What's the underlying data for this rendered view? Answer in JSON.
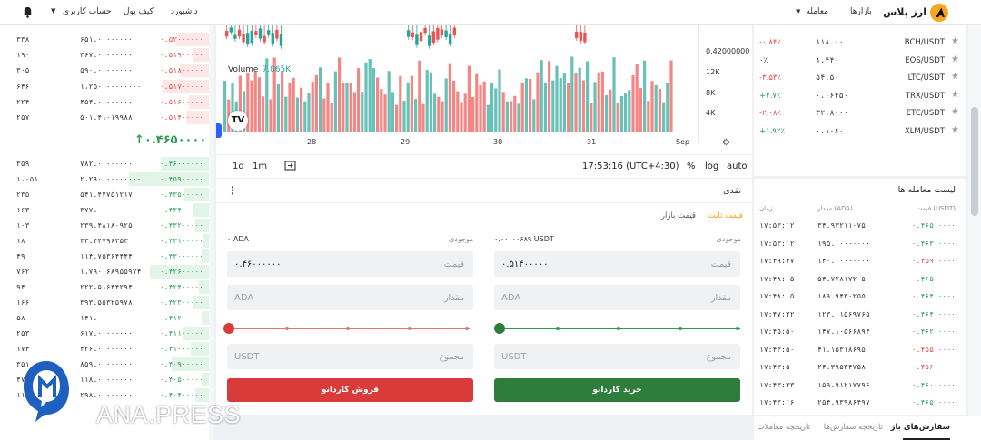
{
  "colors": {
    "buy": "#2e7d3a",
    "sell": "#d93b3b",
    "up": "#2e9b55",
    "down": "#e04848",
    "chart_up": "#26a69a",
    "chart_down": "#ef5350",
    "brand": "#f5a623"
  },
  "topbar": {
    "brand": "ارز پلاس",
    "nav_markets": "بازارها",
    "nav_trade": "معامله",
    "nav_dashboard": "داشبورد",
    "nav_wallet": "کیف پول",
    "nav_account": "حساب کاربری"
  },
  "orderbook": {
    "asks": [
      {
        "q": "۳۳۸",
        "a": "۶۵۱.۰۰۰۰۰۰۰۰",
        "p": "۰.۵۲۰۰۰۰۰۰",
        "fill": 0.18
      },
      {
        "q": "۱۹۰",
        "a": "۳۶۷.۰۰۰۰۰۰۰۰",
        "p": "۰.۵۱۹۰۰۰۰۰",
        "fill": 0.1
      },
      {
        "q": "۳۰۵",
        "a": "۵۹۰.۰۰۰۰۰۰۰۰",
        "p": "۰.۵۱۸۰۰۰۰۰",
        "fill": 0.16
      },
      {
        "q": "۶۴۶",
        "a": "۱،۲۵۰.۰۰۰۰۰۰۰۰",
        "p": "۰.۵۱۷۰۰۰۰۰",
        "fill": 0.24
      },
      {
        "q": "۲۲۴",
        "a": "۴۵۴.۰۰۰۰۰۰۰۰",
        "p": "۰.۵۱۶۰۰۰۰۰",
        "fill": 0.12
      },
      {
        "q": "۲۵۷",
        "a": "۵۰۱.۴۱۰۱۹۹۸۸",
        "p": "۰.۵۱۴۰۰۰۰۰",
        "fill": 0.13
      }
    ],
    "last_price": "↑۰.۴۶۵۰۰۰۰۰",
    "bids": [
      {
        "q": "۳۵۹",
        "a": "۷۸۲.۰۰۰۰۰۰۰۰",
        "p": "۰.۴۶۰۰۰۰۰۰",
        "fill": 0.25
      },
      {
        "q": "۱،۰۵۱",
        "a": "۲،۲۹۰.۰۰۰۰۰۰۰۰",
        "p": "۰.۴۵۹۰۰۰۰۰",
        "fill": 0.4
      },
      {
        "q": "۲۳۵",
        "a": "۵۴۱.۴۴۷۵۱۲۱۷",
        "p": "۰.۴۳۵۰۰۰۰۰",
        "fill": 0.14
      },
      {
        "q": "۱۶۳",
        "a": "۳۷۷.۰۰۰۰۰۰۰۰",
        "p": "۰.۴۳۴۰۰۰۰۰",
        "fill": 0.1
      },
      {
        "q": "۱۰۳",
        "a": "۲۳۹.۴۸۱۸۰۹۲۵",
        "p": "۰.۴۳۲۰۰۰۰۰",
        "fill": 0.09
      },
      {
        "q": "۱۸",
        "a": "۴۳.۴۴۷۹۶۳۵۳",
        "p": "۰.۴۳۱۰۰۰۰۰",
        "fill": 0.05
      },
      {
        "q": "۴۹",
        "a": "۱۱۴.۷۵۳۶۴۴۴۴",
        "p": "۰.۴۳۰۰۰۰۰۰",
        "fill": 0.06
      },
      {
        "q": "۷۶۲",
        "a": "۱،۷۹۰.۶۸۹۵۵۹۷۴",
        "p": "۰.۴۲۶۰۰۰۰۰",
        "fill": 0.3
      },
      {
        "q": "۹۴",
        "a": "۲۲۲.۵۱۶۴۴۲۹۴",
        "p": "۰.۴۲۴۰۰۰۰۰",
        "fill": 0.07
      },
      {
        "q": "۱۶۶",
        "a": "۳۹۳.۵۵۳۲۵۹۷۸",
        "p": "۰.۴۲۳۰۰۰۰۰",
        "fill": 0.1
      },
      {
        "q": "۵۸",
        "a": "۱۴۱.۰۰۰۰۰۰۰۰",
        "p": "۰.۴۱۲۰۰۰۰۰",
        "fill": 0.06
      },
      {
        "q": "۲۵۳",
        "a": "۶۱۷.۰۰۰۰۰۰۰۰",
        "p": "۰.۴۱۱۰۰۰۰۰",
        "fill": 0.15
      },
      {
        "q": "۱۷۴",
        "a": "۴۲۶.۰۰۰۰۰۰۰۰",
        "p": "۰.۴۱۰۰۰۰۰۰",
        "fill": 0.11
      },
      {
        "q": "۳۵۱",
        "a": "۸۵۹.۰۰۰۰۰۰۰۰",
        "p": "۰.۴۰۹۰۰۰۰۰",
        "fill": 0.2
      },
      {
        "q": "۴۷",
        "a": "۱۱۸.۰۰۰۰۰۰۰۰",
        "p": "۰.۴۰۵۰۰۰۰۰",
        "fill": 0.06
      },
      {
        "q": "۱۱۹",
        "a": "۲۹۸.۰۰۰۰۰۰۰۰",
        "p": "۰.۴۰۴۰۰۰۰۰",
        "fill": 0.09
      }
    ]
  },
  "chart": {
    "price_label": "0.42000000",
    "volume_label": "Volume",
    "volume_value": "7.065K",
    "vol_ticks": [
      "12K",
      "8K",
      "4K"
    ],
    "x_labels": [
      "28",
      "29",
      "30",
      "31",
      "Sep"
    ],
    "tool_1d": "1d",
    "tool_1m": "1m",
    "clock": "17:53:16 (UTC+4:30)",
    "pct": "%",
    "log": "log",
    "auto": "auto",
    "tv_logo": "TV"
  },
  "trade": {
    "title": "نقدی",
    "type_fixed": "قیمت ثابت",
    "type_market": "قیمت بازار",
    "balance_label": "موجودی",
    "buy_balance": "۰.۰۰۰۰۰۶۸۹ USDT",
    "sell_balance": "۰ ADA",
    "buy_price": "۰.۵۱۴۰۰۰۰۰",
    "sell_price": "۰.۴۶۰۰۰۰۰۰",
    "price_label": "قیمت",
    "amount_label": "مقدار",
    "total_label": "مجموع",
    "amount_ph": "ADA",
    "total_ph": "USDT",
    "buy_btn": "خرید کاردانو",
    "sell_btn": "فروش کاردانو"
  },
  "markets": [
    {
      "pair": "BCH/USDT",
      "price": "۱۱۸.۰۰",
      "change": "-۰.۸۴٪",
      "dir": "dn"
    },
    {
      "pair": "EOS/USDT",
      "price": "۱.۴۴۰",
      "change": "۰٪",
      "dir": "zero"
    },
    {
      "pair": "LTC/USDT",
      "price": "۵۴.۵۰",
      "change": "-۳.۵۳٪",
      "dir": "dn"
    },
    {
      "pair": "TRX/USDT",
      "price": "۰.۰۶۴۵۰",
      "change": "+۲.۷٪",
      "dir": "up"
    },
    {
      "pair": "ETC/USDT",
      "price": "۳۲.۸۰۰۰",
      "change": "-۲.۰۸٪",
      "dir": "dn"
    },
    {
      "pair": "XLM/USDT",
      "price": "۰.۱۰۶۰",
      "change": "+۱.۹۲٪",
      "dir": "up"
    }
  ],
  "trades": {
    "title": "لیست معامله ها",
    "col_price": "قیمت (USDT)",
    "col_amount": "مقدار (ADA)",
    "col_time": "زمان",
    "rows": [
      {
        "t": "۱۷:۵۳:۱۲",
        "a": "۳۴.۹۳۲۱۱۰۷۵",
        "p": "۰.۴۶۵۰۰۰۰۰",
        "d": "up"
      },
      {
        "t": "۱۷:۵۳:۱۲",
        "a": "۱۹۵.۰۰۰۰۰۰۰۰",
        "p": "۰.۴۶۳۰۰۰۰۰",
        "d": "up"
      },
      {
        "t": "۱۷:۴۹:۴۷",
        "a": "۱۴۰.۰۰۰۰۰۰۰۰",
        "p": "۰.۴۵۹۰۰۰۰۰",
        "d": "dn"
      },
      {
        "t": "۱۷:۴۸:۰۵",
        "a": "۵۴.۷۲۸۱۷۲۰۵",
        "p": "۰.۴۶۵۰۰۰۰۰",
        "d": "up"
      },
      {
        "t": "۱۷:۴۸:۰۵",
        "a": "۱۸۹.۹۴۳۰۲۵۵",
        "p": "۰.۴۶۴۰۰۰۰۰",
        "d": "up"
      },
      {
        "t": "۱۷:۴۷:۳۲",
        "a": "۱۲۳.۰۱۵۶۹۷۶۵",
        "p": "۰.۴۶۴۰۰۰۰۰",
        "d": "up"
      },
      {
        "t": "۱۷:۴۵:۵۰",
        "a": "۱۴۷.۱۰۵۶۶۸۹۴",
        "p": "۰.۴۶۲۰۰۰۰۰",
        "d": "up"
      },
      {
        "t": "۱۷:۴۳:۵۰",
        "a": "۴۱.۱۵۳۱۸۶۹۵",
        "p": "۰.۴۵۵۰۰۰۰۰",
        "d": "dn"
      },
      {
        "t": "۱۷:۴۳:۵۰",
        "a": "۲۴.۳۹۵۳۴۷۵۸",
        "p": "۰.۴۵۶۰۰۰۰۰",
        "d": "dn"
      },
      {
        "t": "۱۷:۴۳:۳۳",
        "a": "۱۵۹.۹۱۲۱۷۷۹۶",
        "p": "۰.۴۶۰۰۰۰۰۰",
        "d": "up"
      },
      {
        "t": "۱۷:۴۳:۱۶",
        "a": "۲۵۴.۹۳۹۸۶۴۹۷",
        "p": "۰.۴۶۵۰۰۰۰۰",
        "d": "up"
      }
    ]
  },
  "bottom_tabs": {
    "open_orders": "سفارش‌های باز",
    "order_history": "تاریخچه سفارش‌ها",
    "trade_history": "تاریخچه معاملات"
  },
  "watermark": "ANA.PRESS"
}
